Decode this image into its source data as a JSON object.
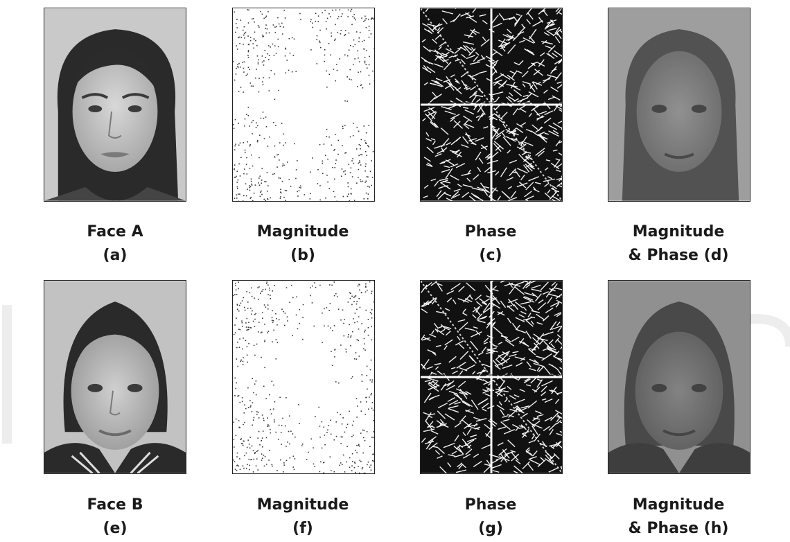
{
  "figure": {
    "panels": [
      {
        "id": "a",
        "title": "Face A",
        "letter": "(a)",
        "kind": "face"
      },
      {
        "id": "b",
        "title": "Magnitude",
        "letter": "(b)",
        "kind": "magnitude"
      },
      {
        "id": "c",
        "title": "Phase",
        "letter": "(c)",
        "kind": "phase"
      },
      {
        "id": "d",
        "title": "Magnitude",
        "title2": "& Phase (d)",
        "kind": "reconstruction"
      },
      {
        "id": "e",
        "title": "Face B",
        "letter": "(e)",
        "kind": "face"
      },
      {
        "id": "f",
        "title": "Magnitude",
        "letter": "(f)",
        "kind": "magnitude"
      },
      {
        "id": "g",
        "title": "Phase",
        "letter": "(g)",
        "kind": "phase"
      },
      {
        "id": "h",
        "title": "Magnitude",
        "title2": "& Phase (h)",
        "kind": "reconstruction"
      }
    ]
  },
  "colors": {
    "ink": "#1a1a1a",
    "border": "#222222",
    "watermark": "#e9e9e9"
  }
}
